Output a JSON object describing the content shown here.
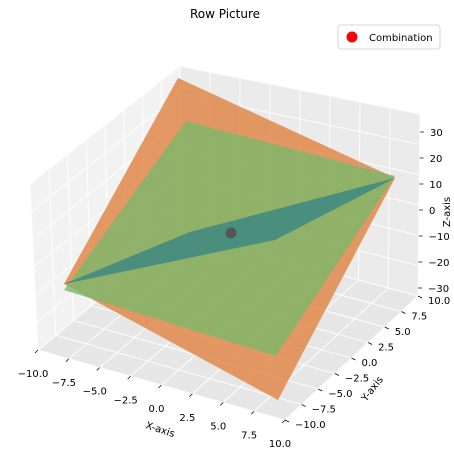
{
  "chart_data": {
    "type": "surface3d",
    "title": "Row Picture",
    "xlabel": "X-axis",
    "ylabel": "Y-axis",
    "zlabel": "Z-axis",
    "xlim": [
      -10,
      10
    ],
    "ylim": [
      -10,
      10
    ],
    "zlim": [
      -35,
      35
    ],
    "x_ticks": [
      "−10.0",
      "−7.5",
      "−5.0",
      "−2.5",
      "0.0",
      "2.5",
      "5.0",
      "7.5",
      "10.0"
    ],
    "y_ticks": [
      "−10.0",
      "−7.5",
      "−5.0",
      "−2.5",
      "0.0",
      "2.5",
      "5.0",
      "7.5",
      "10.0"
    ],
    "z_ticks": [
      "−30",
      "−20",
      "−10",
      "0",
      "10",
      "20",
      "30"
    ],
    "grid": true,
    "legend_placement": "top-right",
    "planes": [
      {
        "color": "#d9762b",
        "opacity": 0.6
      },
      {
        "color": "#1f5f7a",
        "opacity": 0.8
      },
      {
        "color": "#7fcf7f",
        "opacity": 0.55
      }
    ],
    "points": [
      {
        "name": "Combination",
        "x": 0,
        "y": 0,
        "z": 0,
        "legend_color": "#ff0000",
        "drawn_color": "#555555"
      }
    ]
  }
}
